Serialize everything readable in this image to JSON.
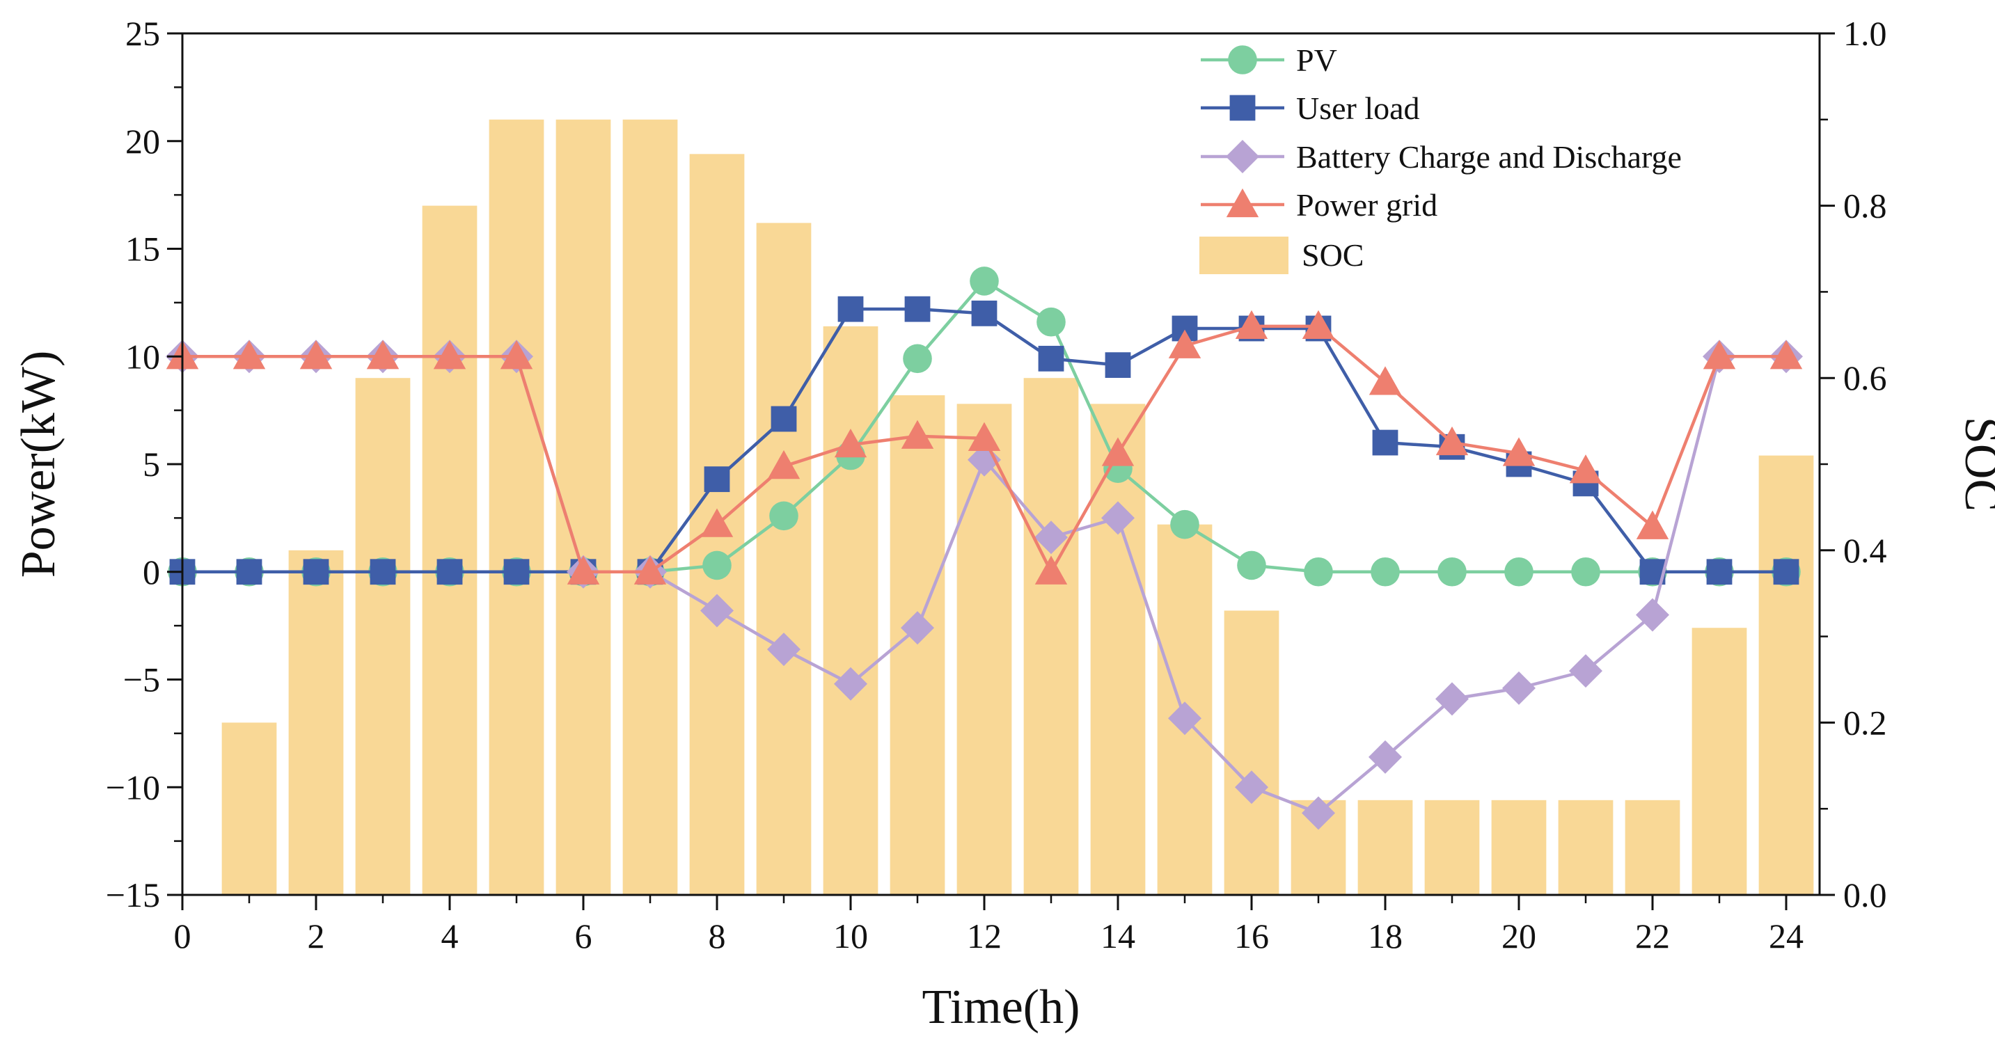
{
  "chart_data": {
    "type": "combo-bar-line",
    "xlabel": "Time(h)",
    "ylabel_left": "Power(kW)",
    "ylabel_right": "SOC",
    "xlim": [
      0,
      24.5
    ],
    "ylim_left": [
      -15,
      25
    ],
    "ylim_right": [
      0.0,
      1.0
    ],
    "x_ticks": [
      0,
      2,
      4,
      6,
      8,
      10,
      12,
      14,
      16,
      18,
      20,
      22,
      24
    ],
    "x_tick_labels": [
      "0",
      "2",
      "4",
      "6",
      "8",
      "10",
      "12",
      "14",
      "16",
      "18",
      "20",
      "22",
      "24"
    ],
    "y_left_ticks": [
      -15,
      -10,
      -5,
      0,
      5,
      10,
      15,
      20,
      25
    ],
    "y_left_tick_labels": [
      "−15",
      "−10",
      "−5",
      "0",
      "5",
      "10",
      "15",
      "20",
      "25"
    ],
    "y_right_ticks": [
      0.0,
      0.2,
      0.4,
      0.6,
      0.8,
      1.0
    ],
    "y_right_tick_labels": [
      "0.0",
      "0.2",
      "0.4",
      "0.6",
      "0.8",
      "1.0"
    ],
    "grid": false,
    "legend_position": "top-right",
    "x": [
      0,
      1,
      2,
      3,
      4,
      5,
      6,
      7,
      8,
      9,
      10,
      11,
      12,
      13,
      14,
      15,
      16,
      17,
      18,
      19,
      20,
      21,
      22,
      23,
      24
    ],
    "bars": {
      "name": "SOC",
      "axis": "right",
      "color": "#F9D896",
      "x": [
        1,
        2,
        3,
        4,
        5,
        6,
        7,
        8,
        9,
        10,
        11,
        12,
        13,
        14,
        15,
        16,
        17,
        18,
        19,
        20,
        21,
        22,
        23,
        24
      ],
      "values": [
        0.2,
        0.4,
        0.6,
        0.8,
        0.9,
        0.9,
        0.9,
        0.86,
        0.78,
        0.66,
        0.58,
        0.57,
        0.6,
        0.57,
        0.43,
        0.33,
        0.11,
        0.11,
        0.11,
        0.11,
        0.11,
        0.11,
        0.31,
        0.51
      ]
    },
    "series": [
      {
        "name": "PV",
        "axis": "left",
        "marker": "circle",
        "color": "#7DCFA0",
        "values": [
          0,
          0,
          0,
          0,
          0,
          0,
          0,
          0,
          0.3,
          2.6,
          5.4,
          9.9,
          13.5,
          11.6,
          4.8,
          2.2,
          0.3,
          0,
          0,
          0,
          0,
          0,
          0,
          0,
          0
        ]
      },
      {
        "name": "User load",
        "axis": "left",
        "marker": "square",
        "color": "#3F5EA8",
        "values": [
          0,
          0,
          0,
          0,
          0,
          0,
          0,
          0,
          4.3,
          7.1,
          12.2,
          12.2,
          12.0,
          9.9,
          9.6,
          11.3,
          11.3,
          11.3,
          6.0,
          5.8,
          5.0,
          4.1,
          0,
          0,
          0
        ]
      },
      {
        "name": "Battery Charge and Discharge",
        "axis": "left",
        "marker": "diamond",
        "color": "#B8A3D4",
        "values": [
          10,
          10,
          10,
          10,
          10,
          10,
          0,
          0,
          -1.8,
          -3.6,
          -5.2,
          -2.6,
          5.2,
          1.6,
          2.5,
          -6.8,
          -10.0,
          -11.2,
          -8.6,
          -5.9,
          -5.4,
          -4.6,
          -2.0,
          10,
          10
        ]
      },
      {
        "name": "Power grid",
        "axis": "left",
        "marker": "triangle",
        "color": "#EE7F6F",
        "values": [
          10,
          10,
          10,
          10,
          10,
          10,
          0,
          0,
          2.2,
          4.9,
          5.9,
          6.3,
          6.2,
          0,
          5.5,
          10.5,
          11.4,
          11.4,
          8.8,
          6.0,
          5.5,
          4.7,
          2.1,
          10,
          10
        ]
      }
    ]
  }
}
